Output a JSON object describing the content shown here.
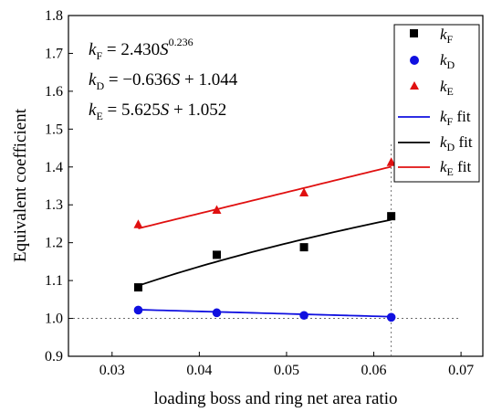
{
  "chart_data": {
    "type": "scatter",
    "xlabel": "loading boss and ring net area ratio",
    "ylabel": "Equivalent coefficient",
    "xlim": [
      0.025,
      0.0725
    ],
    "ylim": [
      0.9,
      1.8
    ],
    "xticks": [
      "0.03",
      "0.04",
      "0.05",
      "0.06",
      "0.07"
    ],
    "yticks": [
      "0.9",
      "1.0",
      "1.1",
      "1.2",
      "1.3",
      "1.4",
      "1.5",
      "1.6",
      "1.7",
      "1.8"
    ],
    "x": [
      0.033,
      0.042,
      0.052,
      0.062
    ],
    "series": [
      {
        "name": "kF",
        "marker": "square",
        "color": "#000000",
        "values": [
          1.082,
          1.168,
          1.188,
          1.27
        ]
      },
      {
        "name": "kD",
        "marker": "circle",
        "color": "#1010e0",
        "values": [
          1.022,
          1.015,
          1.008,
          1.003
        ]
      },
      {
        "name": "kE",
        "marker": "triangle",
        "color": "#e01010",
        "values": [
          1.248,
          1.286,
          1.332,
          1.412
        ]
      }
    ],
    "fits": [
      {
        "name": "kF fit",
        "color": "#000000",
        "coef_a": 2.43,
        "coef_b": 0.236,
        "form": "power"
      },
      {
        "name": "kD fit",
        "color": "#1010e0",
        "coef_a": -0.636,
        "coef_b": 1.044,
        "form": "linear"
      },
      {
        "name": "kE fit",
        "color": "#e01010",
        "coef_a": 5.625,
        "coef_b": 1.052,
        "form": "linear"
      }
    ],
    "annotations": {
      "equation_kF": "kF = 2.430S^0.236",
      "equation_kD": "kD = −0.636S + 1.044",
      "equation_kE": "kE = 5.625S + 1.052",
      "hline_y": 1.0,
      "vline_x": 0.062
    },
    "legend_position": "top-right"
  }
}
